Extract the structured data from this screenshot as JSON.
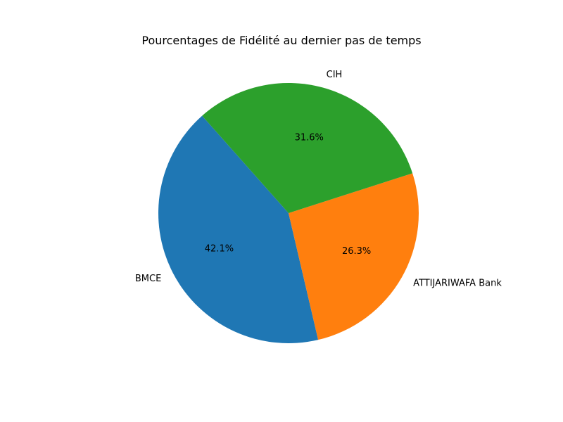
{
  "chart_data": {
    "type": "pie",
    "title": "Pourcentages de Fidélité au dernier pas de temps",
    "slices": [
      {
        "label": "BMCE",
        "value": 42.1,
        "pct_label": "42.1%",
        "color": "#1f77b4"
      },
      {
        "label": "ATTIJARIWAFA Bank",
        "value": 26.3,
        "pct_label": "26.3%",
        "color": "#ff7f0e"
      },
      {
        "label": "CIH",
        "value": 31.6,
        "pct_label": "31.6%",
        "color": "#2ca02c"
      }
    ]
  }
}
